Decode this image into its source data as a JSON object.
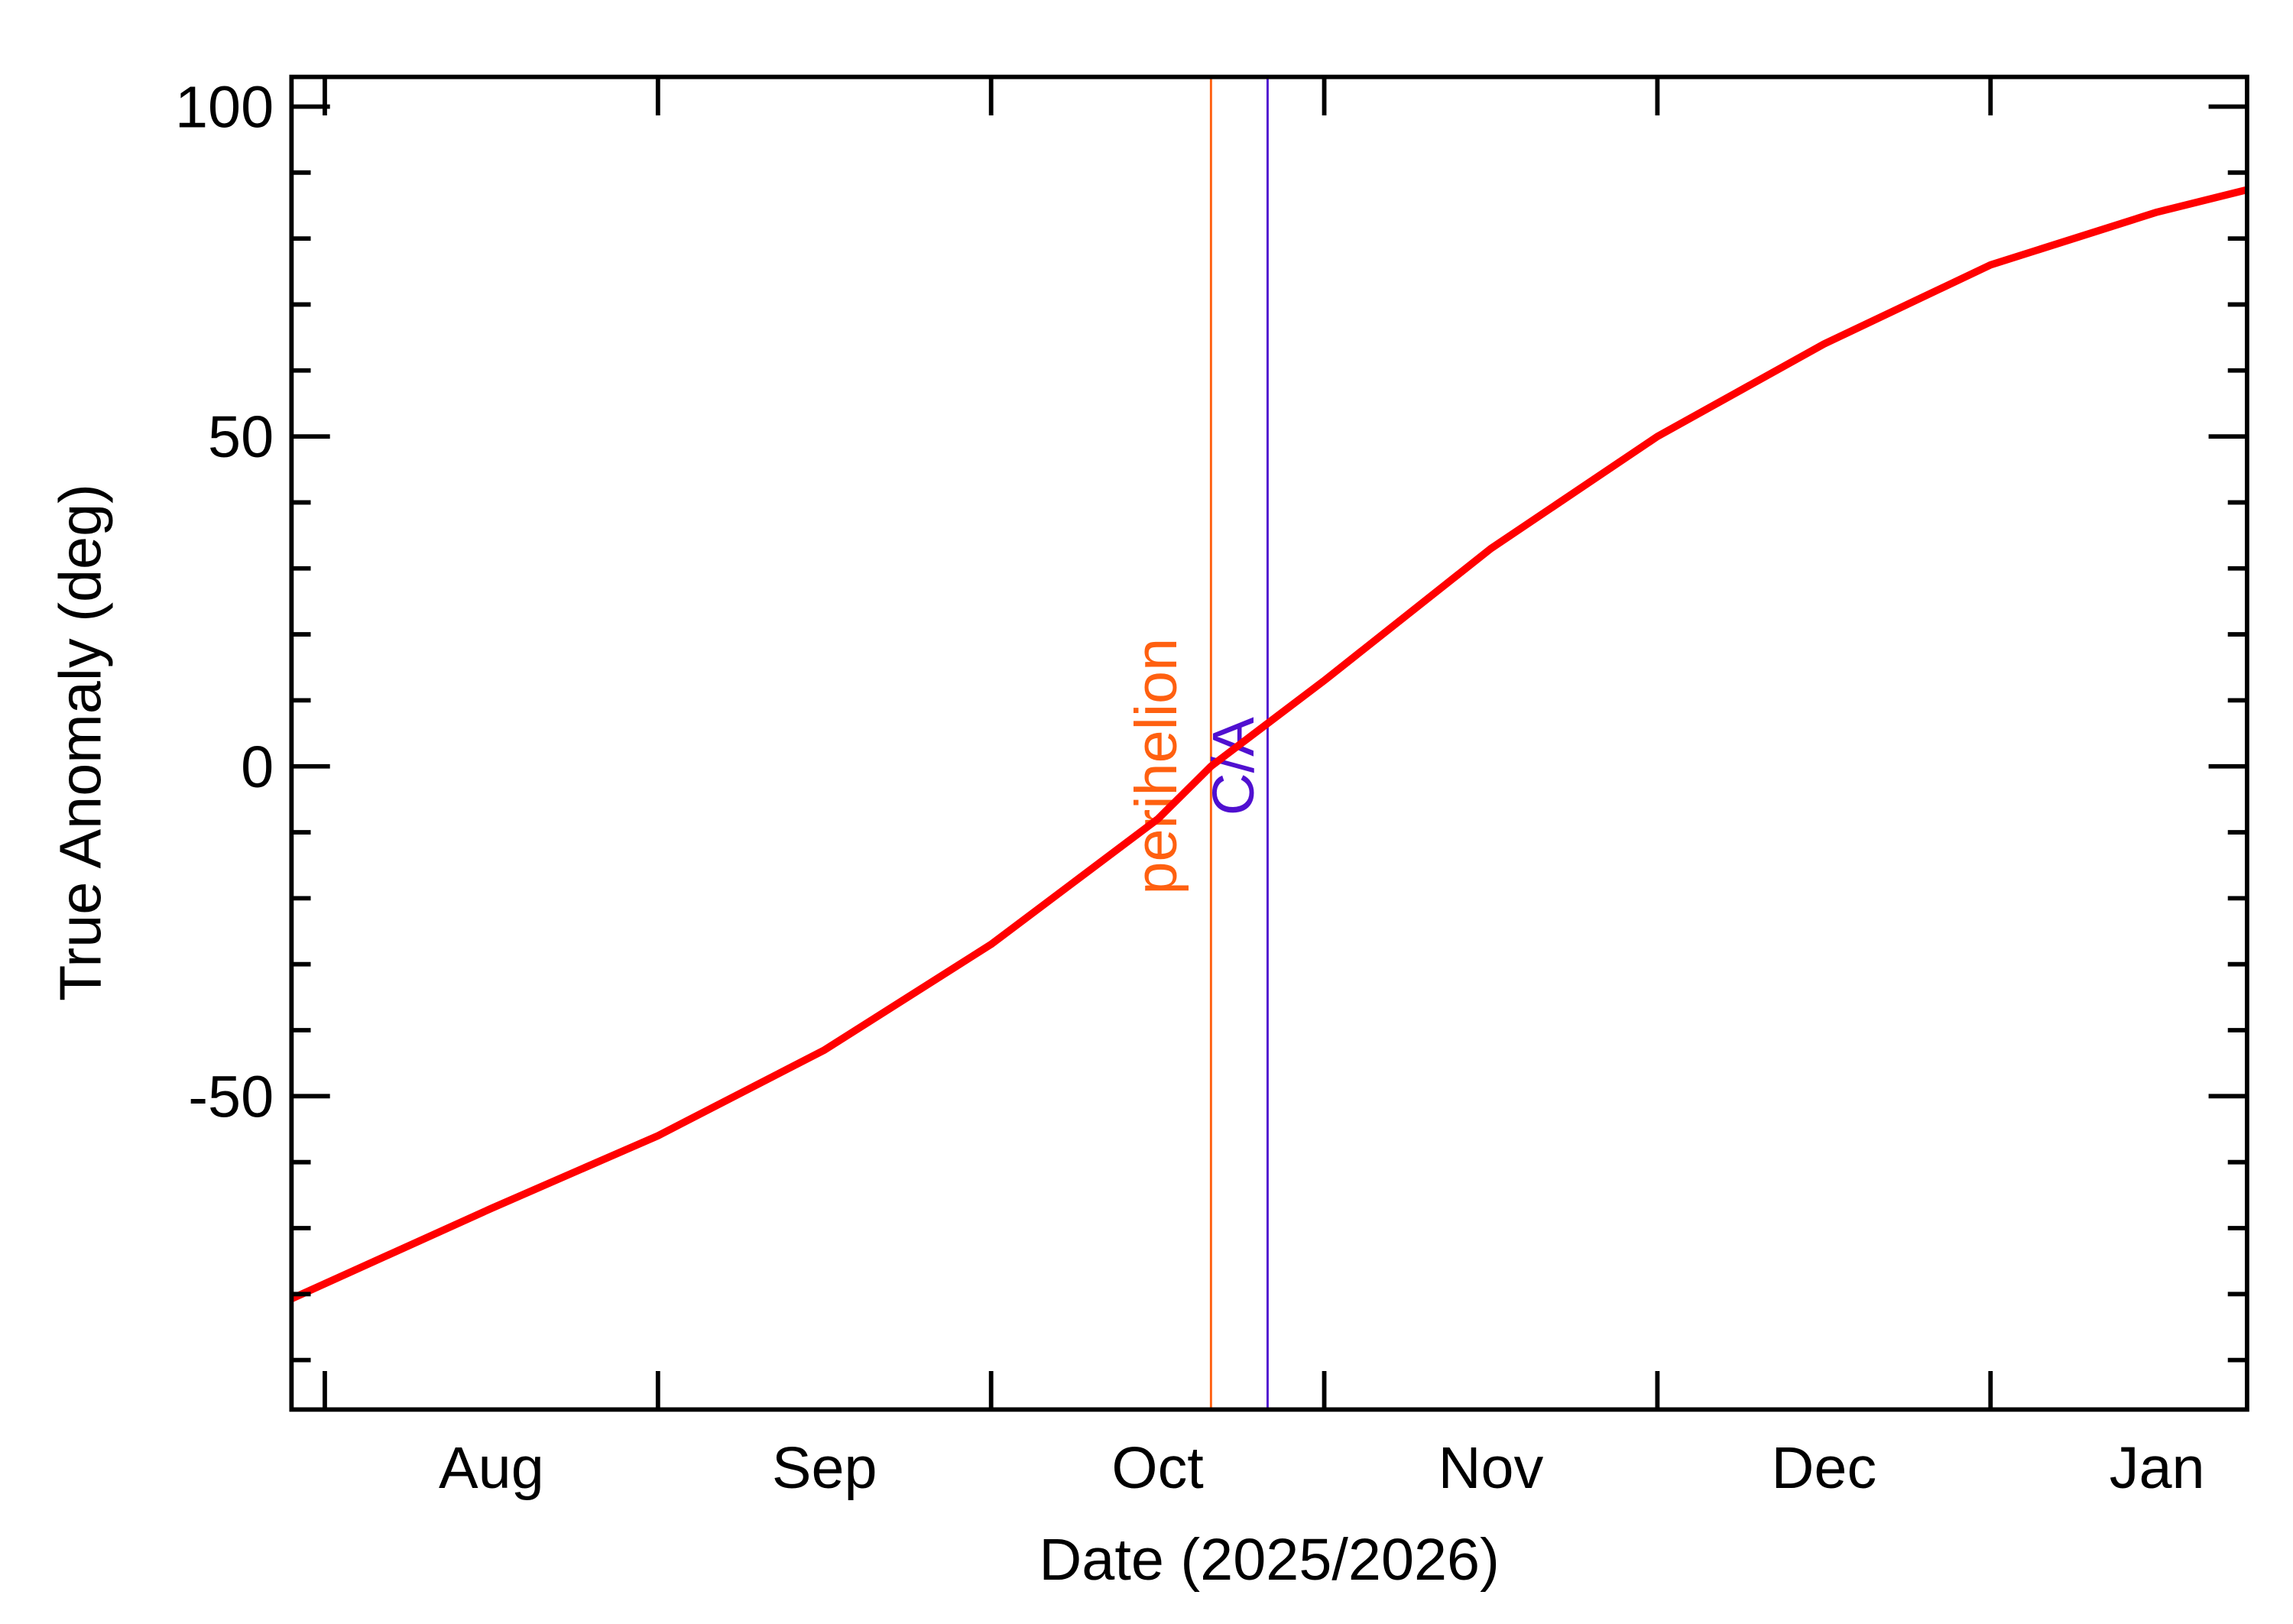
{
  "chart_data": {
    "type": "line",
    "x_label": "Date (2025/2026)",
    "y_label": "True Anomaly (deg)",
    "categories": [
      "Aug",
      "Sep",
      "Oct",
      "Nov",
      "Dec",
      "Jan"
    ],
    "xlim": [
      -0.1,
      5.77
    ],
    "xticks": [
      0,
      1,
      2,
      3,
      4,
      5
    ],
    "ylim": [
      -97.5,
      104.5
    ],
    "yticks": [
      -50,
      0,
      50,
      100
    ],
    "yminor": [
      -90,
      -80,
      -70,
      -60,
      -40,
      -30,
      -20,
      -10,
      10,
      20,
      30,
      40,
      60,
      70,
      80,
      90
    ],
    "series": [
      {
        "color": "#ff0000",
        "x": [
          -0.1,
          0.5,
          1.0,
          1.5,
          2.0,
          2.5,
          2.66,
          3.0,
          3.5,
          4.0,
          4.5,
          5.0,
          5.5,
          5.77
        ],
        "values": [
          -80.7,
          -67,
          -56,
          -43,
          -27,
          -8,
          0,
          13,
          33,
          50,
          64,
          76,
          84,
          87.4
        ]
      }
    ],
    "markers": [
      {
        "label": "perihelion",
        "x": 2.66,
        "color": "#ff6010"
      },
      {
        "label": "C/A",
        "x": 2.83,
        "color": "#5010d0"
      }
    ]
  }
}
